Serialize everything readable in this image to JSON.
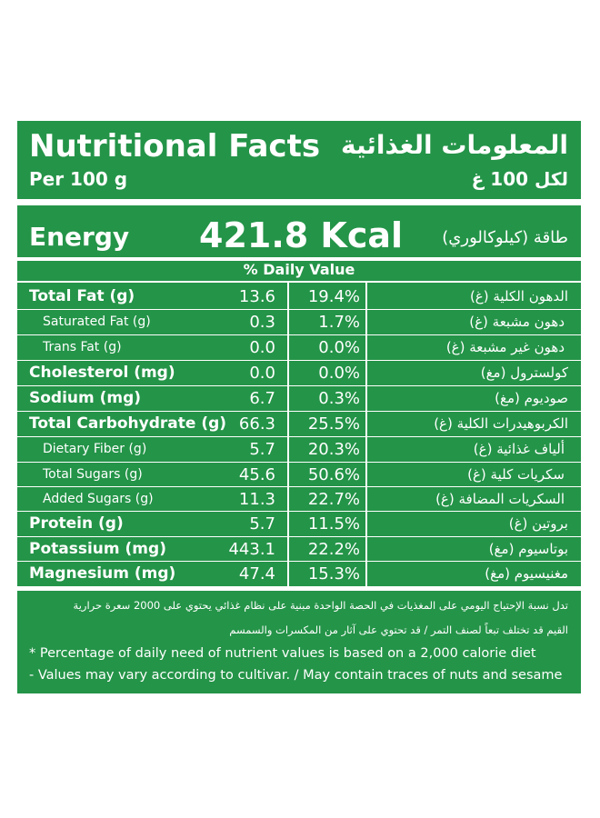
{
  "colors": {
    "green": "#249448",
    "text": "#ffffff"
  },
  "title": {
    "en": "Nutritional Facts",
    "ar": "المعلومات الغذائية"
  },
  "serving": {
    "en": "Per 100 g",
    "ar": "لكل 100 غ"
  },
  "energy": {
    "label_en": "Energy",
    "value": "421.8 Kcal",
    "label_ar": "طاقة (كيلوكالوري)"
  },
  "dv_header": "% Daily Value",
  "nutrients": [
    {
      "name": "Total Fat (g)",
      "amount": "13.6",
      "dv": "19.4%",
      "ar": "الدهون الكلية (غ)",
      "sub": false
    },
    {
      "name": "Saturated Fat (g)",
      "amount": "0.3",
      "dv": "1.7%",
      "ar": "دهون مشبعة (غ)",
      "sub": true
    },
    {
      "name": "Trans Fat (g)",
      "amount": "0.0",
      "dv": "0.0%",
      "ar": "دهون غير مشبعة (غ)",
      "sub": true
    },
    {
      "name": "Cholesterol (mg)",
      "amount": "0.0",
      "dv": "0.0%",
      "ar": "كولسترول (مغ)",
      "sub": false
    },
    {
      "name": "Sodium (mg)",
      "amount": "6.7",
      "dv": "0.3%",
      "ar": "صوديوم (مغ)",
      "sub": false
    },
    {
      "name": "Total Carbohydrate (g)",
      "amount": "66.3",
      "dv": "25.5%",
      "ar": "الكربوهيدرات الكلية (غ)",
      "sub": false
    },
    {
      "name": "Dietary Fiber (g)",
      "amount": "5.7",
      "dv": "20.3%",
      "ar": "ألياف غذائية (غ)",
      "sub": true
    },
    {
      "name": "Total Sugars (g)",
      "amount": "45.6",
      "dv": "50.6%",
      "ar": "سكريات كلية (غ)",
      "sub": true
    },
    {
      "name": "Added Sugars (g)",
      "amount": "11.3",
      "dv": "22.7%",
      "ar": "السكريات المضافة (غ)",
      "sub": true
    },
    {
      "name": "Protein (g)",
      "amount": "5.7",
      "dv": "11.5%",
      "ar": "بروتين (غ)",
      "sub": false
    },
    {
      "name": "Potassium (mg)",
      "amount": "443.1",
      "dv": "22.2%",
      "ar": "بوتاسيوم (مغ)",
      "sub": false
    },
    {
      "name": "Magnesium (mg)",
      "amount": "47.4",
      "dv": "15.3%",
      "ar": "مغنيسيوم (مغ)",
      "sub": false
    }
  ],
  "footnotes": {
    "ar_line1": "تدل نسبة الإحتياج اليومي على المغذيات في الحصة الواحدة مبنية على نظام غذائي يحتوي على 2000 سعرة حرارية",
    "ar_line2": "القيم قد تختلف تبعاً لصنف التمر   /   قد تحتوي على آثار من المكسرات والسمسم",
    "en_line1": "* Percentage of daily need of nutrient values is based on a 2,000 calorie diet",
    "en_line2": "- Values may vary according to cultivar.  /  May contain traces of nuts and sesame"
  }
}
